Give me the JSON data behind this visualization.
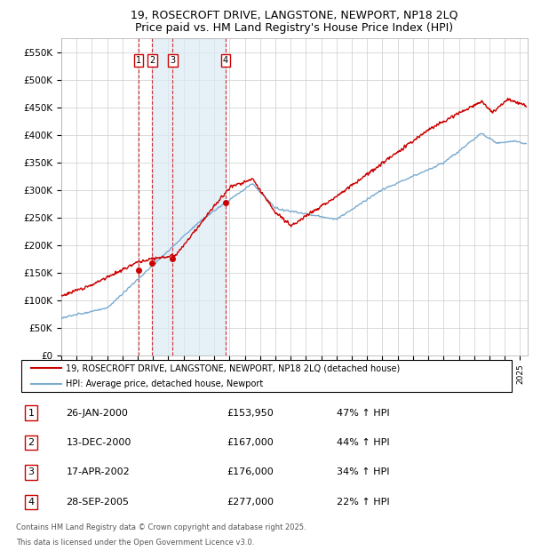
{
  "title": "19, ROSECROFT DRIVE, LANGSTONE, NEWPORT, NP18 2LQ",
  "subtitle": "Price paid vs. HM Land Registry's House Price Index (HPI)",
  "ylim": [
    0,
    575000
  ],
  "yticks": [
    0,
    50000,
    100000,
    150000,
    200000,
    250000,
    300000,
    350000,
    400000,
    450000,
    500000,
    550000
  ],
  "ytick_labels": [
    "£0",
    "£50K",
    "£100K",
    "£150K",
    "£200K",
    "£250K",
    "£300K",
    "£350K",
    "£400K",
    "£450K",
    "£500K",
    "£550K"
  ],
  "xlim_start": 1995.0,
  "xlim_end": 2025.5,
  "xticks": [
    1995,
    1996,
    1997,
    1998,
    1999,
    2000,
    2001,
    2002,
    2003,
    2004,
    2005,
    2006,
    2007,
    2008,
    2009,
    2010,
    2011,
    2012,
    2013,
    2014,
    2015,
    2016,
    2017,
    2018,
    2019,
    2020,
    2021,
    2022,
    2023,
    2024,
    2025
  ],
  "red_line_color": "#cc0000",
  "blue_line_color": "#7aabcf",
  "blue_shade_color": "#daeaf5",
  "transaction_color": "#cc0000",
  "vline_color": "#cc0000",
  "transactions": [
    {
      "id": 1,
      "date": "26-JAN-2000",
      "x": 2000.07,
      "price": 153950,
      "pct": "47%",
      "dir": "↑"
    },
    {
      "id": 2,
      "date": "13-DEC-2000",
      "x": 2000.95,
      "price": 167000,
      "pct": "44%",
      "dir": "↑"
    },
    {
      "id": 3,
      "date": "17-APR-2002",
      "x": 2002.29,
      "price": 176000,
      "pct": "34%",
      "dir": "↑"
    },
    {
      "id": 4,
      "date": "28-SEP-2005",
      "x": 2005.74,
      "price": 277000,
      "pct": "22%",
      "dir": "↑"
    }
  ],
  "legend_red_label": "19, ROSECROFT DRIVE, LANGSTONE, NEWPORT, NP18 2LQ (detached house)",
  "legend_blue_label": "HPI: Average price, detached house, Newport",
  "footer_line1": "Contains HM Land Registry data © Crown copyright and database right 2025.",
  "footer_line2": "This data is licensed under the Open Government Licence v3.0.",
  "background_color": "#ffffff",
  "plot_bg_color": "#ffffff",
  "grid_color": "#cccccc"
}
